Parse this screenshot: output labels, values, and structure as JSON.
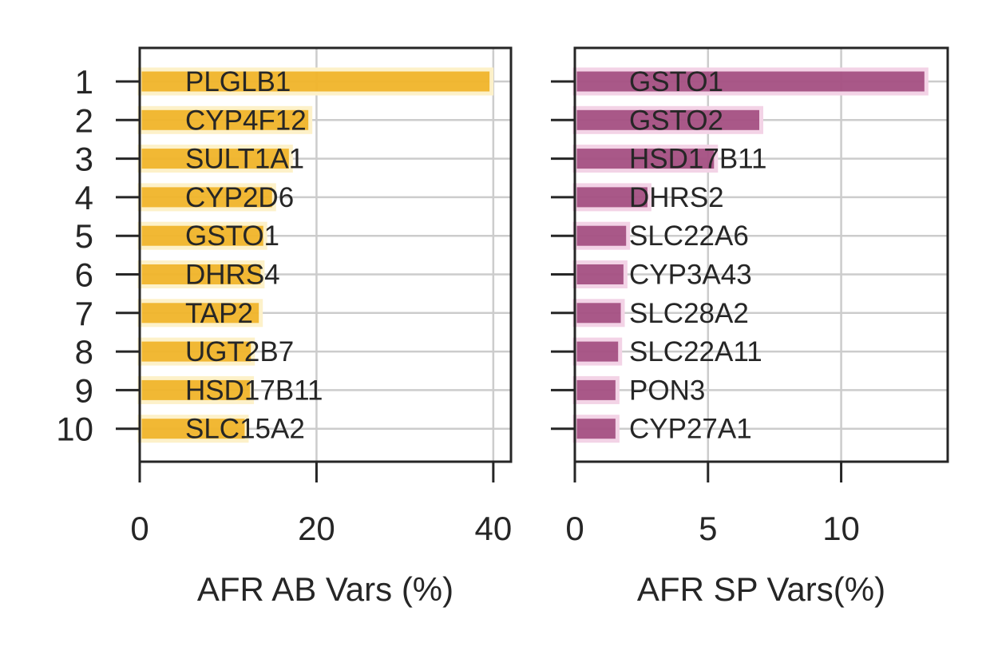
{
  "chart_data": [
    {
      "type": "bar",
      "orientation": "horizontal",
      "categories": [
        "1",
        "2",
        "3",
        "4",
        "5",
        "6",
        "7",
        "8",
        "9",
        "10"
      ],
      "labels": [
        "PLGLB1",
        "CYP4F12",
        "SULT1A1",
        "CYP2D6",
        "GSTO1",
        "DHRS4",
        "TAP2",
        "UGT2B7",
        "HSD17B11",
        "SLC15A2"
      ],
      "values": [
        39.8,
        19.3,
        17.1,
        15.2,
        14.2,
        13.9,
        13.7,
        12.8,
        12.7,
        12.1
      ],
      "xlabel": "AFR AB Vars (%)",
      "xlim": [
        0,
        42
      ],
      "xticks": [
        0,
        20,
        40
      ],
      "grid": true,
      "color": "#f0b429",
      "edge_color": "#fdf1c9"
    },
    {
      "type": "bar",
      "orientation": "horizontal",
      "categories": [
        "1",
        "2",
        "3",
        "4",
        "5",
        "6",
        "7",
        "8",
        "9",
        "10"
      ],
      "labels": [
        "GSTO1",
        "GSTO2",
        "HSD17B11",
        "DHRS2",
        "SLC22A6",
        "CYP3A43",
        "SLC28A2",
        "SLC22A11",
        "PON3",
        "CYP27A1"
      ],
      "values": [
        13.2,
        7.0,
        5.3,
        2.8,
        2.0,
        1.9,
        1.8,
        1.7,
        1.6,
        1.6
      ],
      "xlabel": "AFR SP Vars(%)",
      "xlim": [
        0,
        14
      ],
      "xticks": [
        0,
        5,
        10
      ],
      "grid": true,
      "color": "#a44f82",
      "edge_color": "#f3d3e6"
    }
  ]
}
